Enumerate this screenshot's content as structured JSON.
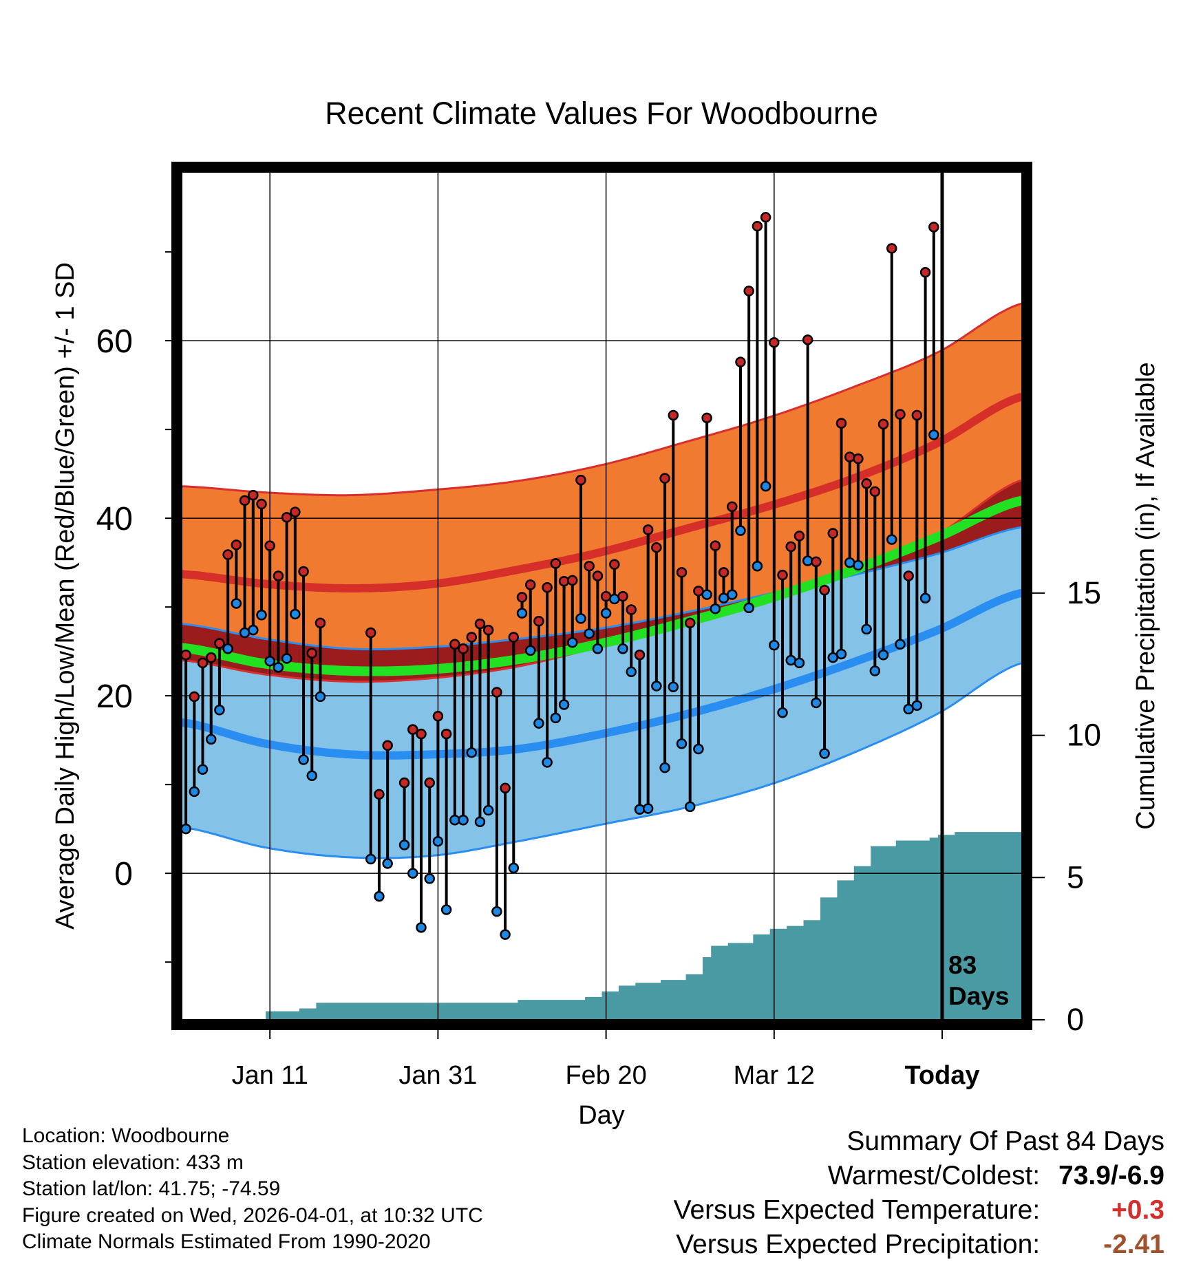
{
  "chart_data": {
    "type": "line",
    "title": "Recent Climate Values For Woodbourne",
    "xlabel": "Day",
    "ylabel_left": "Average Daily High/Low/Mean (Red/Blue/Green) +/- 1 SD",
    "ylabel_right": "Cumulative Precipitation (in), If Available",
    "xlim": [
      0,
      100
    ],
    "x_ticks": [
      {
        "day": 10.5,
        "label": "Jan 11"
      },
      {
        "day": 30.5,
        "label": "Jan 31"
      },
      {
        "day": 50.5,
        "label": "Feb 20"
      },
      {
        "day": 70.5,
        "label": "Mar 12"
      },
      {
        "day": 90.5,
        "label": "Today"
      }
    ],
    "ylim_temp": [
      -16.5,
      79
    ],
    "y_ticks_temp": [
      0,
      20,
      40,
      60
    ],
    "y_minor_ticks_temp": [
      -10,
      10,
      30,
      50,
      70
    ],
    "ylim_precip": [
      0,
      29.8
    ],
    "y_ticks_precip": [
      0,
      5,
      10,
      15
    ],
    "today_day": 90.5,
    "today_label_line1": "83",
    "today_label_line2": "Days",
    "normals": {
      "x": [
        0,
        10,
        20,
        30,
        40,
        50,
        60,
        70,
        80,
        90,
        100
      ],
      "high_mean": [
        33.7,
        32.6,
        32.1,
        32.6,
        34.2,
        36.2,
        38.8,
        41.4,
        44.5,
        48.5,
        53.7
      ],
      "high_sd_upper": [
        43.6,
        42.9,
        42.6,
        43.2,
        44.2,
        46.0,
        48.6,
        51.4,
        54.8,
        58.7,
        64.2
      ],
      "high_sd_lower": [
        24.0,
        22.4,
        21.6,
        22.0,
        23.3,
        25.6,
        28.1,
        31.1,
        34.1,
        38.2,
        44.3
      ],
      "low_mean": [
        17.0,
        14.6,
        13.4,
        13.4,
        14.0,
        15.7,
        17.9,
        20.6,
        23.8,
        27.4,
        31.6
      ],
      "low_sd_upper": [
        28.1,
        26.4,
        25.3,
        25.5,
        26.4,
        27.6,
        29.4,
        31.5,
        33.6,
        36.0,
        39.0
      ],
      "low_sd_lower": [
        5.2,
        2.9,
        1.8,
        2.0,
        3.6,
        5.5,
        7.4,
        10.0,
        13.6,
        18.0,
        23.7
      ],
      "mean": [
        25.4,
        23.6,
        22.8,
        23.0,
        24.1,
        25.9,
        28.3,
        31.0,
        34.2,
        37.9,
        42.0
      ]
    },
    "series": [
      {
        "name": "High",
        "color": "#c62828",
        "values": [
          24.6,
          19.9,
          23.7,
          24.3,
          25.9,
          35.9,
          37.0,
          42.0,
          42.6,
          41.6,
          36.9,
          33.5,
          40.1,
          40.7,
          34.0,
          24.8,
          28.2,
          null,
          null,
          null,
          null,
          null,
          27.1,
          8.9,
          14.4,
          null,
          10.2,
          16.2,
          15.7,
          10.2,
          17.7,
          15.7,
          25.8,
          25.3,
          26.6,
          28.1,
          27.4,
          20.4,
          9.6,
          26.6,
          31.1,
          32.5,
          28.4,
          32.2,
          34.9,
          32.9,
          33.0,
          44.3,
          34.6,
          33.5,
          31.2,
          34.8,
          31.2,
          29.7,
          24.6,
          38.7,
          36.7,
          44.5,
          51.6,
          33.9,
          28.2,
          31.8,
          51.3,
          36.9,
          33.9,
          41.3,
          57.6,
          65.6,
          72.9,
          73.9,
          59.8,
          33.6,
          36.8,
          38.0,
          60.1,
          35.1,
          31.9,
          38.3,
          50.7,
          46.9,
          46.7,
          43.9,
          43.0,
          50.6,
          70.4,
          51.7,
          33.5,
          51.6,
          67.7,
          72.8
        ]
      },
      {
        "name": "Low",
        "color": "#1e88e5",
        "values": [
          5.0,
          9.2,
          11.7,
          15.1,
          18.4,
          25.3,
          30.4,
          27.1,
          27.4,
          29.1,
          23.9,
          23.2,
          24.2,
          29.2,
          12.8,
          11.0,
          19.9,
          null,
          null,
          null,
          null,
          null,
          1.6,
          -2.6,
          1.1,
          null,
          3.2,
          0.0,
          -6.1,
          -0.6,
          3.6,
          -4.1,
          6.0,
          6.0,
          13.6,
          5.8,
          7.1,
          -4.3,
          -6.9,
          0.6,
          29.3,
          25.1,
          16.9,
          12.5,
          17.5,
          19.0,
          26.0,
          28.7,
          27.0,
          25.3,
          29.3,
          30.9,
          25.3,
          22.7,
          7.2,
          7.3,
          21.1,
          11.9,
          21.0,
          14.6,
          7.5,
          14.0,
          31.4,
          29.8,
          31.0,
          31.4,
          38.6,
          29.9,
          34.6,
          43.6,
          25.7,
          18.1,
          24.0,
          23.7,
          35.2,
          19.2,
          13.5,
          24.3,
          24.7,
          35.0,
          34.7,
          27.5,
          22.8,
          24.6,
          37.6,
          25.8,
          18.5,
          18.9,
          31.0,
          49.4
        ]
      }
    ],
    "precip_cumulative": {
      "x": [
        0,
        8,
        10,
        14,
        16,
        30,
        40,
        48,
        50,
        52,
        54,
        57,
        60,
        62,
        63,
        65,
        68,
        70,
        72,
        74,
        76,
        78,
        80,
        82,
        85,
        89,
        90,
        92,
        100
      ],
      "y": [
        0,
        0,
        0.3,
        0.4,
        0.6,
        0.6,
        0.7,
        0.8,
        1.0,
        1.2,
        1.3,
        1.4,
        1.6,
        2.2,
        2.6,
        2.7,
        3.0,
        3.2,
        3.3,
        3.5,
        4.3,
        4.9,
        5.4,
        6.1,
        6.3,
        6.4,
        6.5,
        6.6,
        6.6
      ]
    }
  },
  "footer": {
    "location": "Location: Woodbourne",
    "elevation": "Station elevation: 433 m",
    "latlon": "Station lat/lon: 41.75; -74.59",
    "created": "Figure created on Wed, 2026-04-01, at 10:32 UTC",
    "normals_period": "Climate Normals Estimated From 1990-2020"
  },
  "summary": {
    "title": "Summary Of Past 84 Days",
    "warmest_coldest_label": "Warmest/Coldest:",
    "warmest_coldest_value": "73.9/-6.9",
    "temp_label": "Versus Expected Temperature:",
    "temp_value": "+0.3",
    "precip_label": "Versus Expected Precipitation:",
    "precip_value": "-2.41"
  },
  "colors": {
    "high_band": "#f07a30",
    "high_line": "#d62f2a",
    "high_band_edge": "#d92e2e",
    "low_band": "#85c2e8",
    "low_line": "#2a8ef0",
    "low_band_edge": "#2a8ef0",
    "overlap_band": "#9b1c1c",
    "mean_line": "#22e022",
    "precip_fill": "#4a9aa3",
    "high_dot": "#c62828",
    "low_dot": "#1e88e5",
    "temp_plus": "#d32f2f",
    "precip_minus": "#a0522d"
  }
}
